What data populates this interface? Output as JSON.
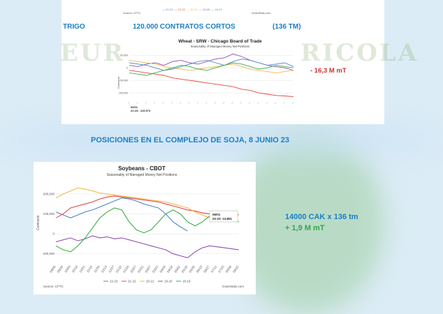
{
  "top": {
    "source_left": "Source: CFTC",
    "source_right": "GrainStats.com",
    "legend_top": [
      "22-23",
      "21-22",
      "20-21",
      "19-20",
      "18-19"
    ],
    "crop": "TRIGO",
    "contracts": "120.000 CONTRATOS CORTOS",
    "tonnes": "(136 TM)",
    "watermark_left": "EUR",
    "watermark_right": "RICOLA",
    "delta": "- 16,3 M mT"
  },
  "bottom": {
    "heading": "POSICIONES EN EL COMPLEJO DE SOJA, 8 JUNIO 23",
    "annotation_a": "14000 CAK x 136 tm",
    "annotation_b": "+ 1,9 M mT",
    "source_left": "Source: CFTC",
    "source_right": "GrainStats.com"
  },
  "colors": {
    "s2223": "#4f86c6",
    "s2122": "#e8453c",
    "s2021": "#f2b84b",
    "s1920": "#8e4fb0",
    "s1819": "#3fae49",
    "accent_blue": "#1b7fc4"
  },
  "chart_data": [
    {
      "type": "line",
      "title": "Wheat - SRW - Chicago Board of Trade",
      "subtitle": "Seasonality of Managed Money Net Positions",
      "ylabel": "Contracts",
      "ylim": [
        -130000,
        70000
      ],
      "yticks": [
        50000,
        0,
        -50000,
        -100000
      ],
      "ytick_labels": [
        "50,000",
        "0",
        "-50,000",
        "-100,000"
      ],
      "latest_label": "06/01",
      "latest_value_label": "22-23: -115,074",
      "series": [
        {
          "name": "22-23",
          "color": "#e8453c",
          "values": [
            -10000,
            -15000,
            -20000,
            -25000,
            -30000,
            -40000,
            -45000,
            -50000,
            -55000,
            -60000,
            -65000,
            -70000,
            -75000,
            -85000,
            -90000,
            -100000,
            -105000,
            -110000,
            -112000,
            -115000
          ]
        },
        {
          "name": "21-22",
          "color": "#8e4fb0",
          "values": [
            10000,
            5000,
            15000,
            20000,
            10000,
            25000,
            30000,
            20000,
            15000,
            25000,
            35000,
            40000,
            55000,
            45000,
            30000,
            20000,
            10000,
            5000,
            0,
            -10000
          ]
        },
        {
          "name": "20-21",
          "color": "#f2b84b",
          "values": [
            30000,
            25000,
            20000,
            15000,
            5000,
            0,
            -5000,
            -10000,
            -5000,
            0,
            5000,
            10000,
            15000,
            5000,
            -5000,
            -10000,
            -15000,
            -20000,
            -15000,
            -10000
          ]
        },
        {
          "name": "19-20",
          "color": "#4f86c6",
          "values": [
            20000,
            15000,
            10000,
            0,
            -10000,
            -5000,
            5000,
            15000,
            25000,
            30000,
            20000,
            10000,
            25000,
            35000,
            30000,
            20000,
            10000,
            15000,
            20000,
            5000
          ]
        },
        {
          "name": "18-19",
          "color": "#3fae49",
          "values": [
            -20000,
            -25000,
            -30000,
            -20000,
            -10000,
            0,
            10000,
            5000,
            -5000,
            -10000,
            0,
            10000,
            20000,
            15000,
            5000,
            -5000,
            0,
            10000,
            5000,
            0
          ]
        }
      ]
    },
    {
      "type": "line",
      "title": "Soybeans - CBOT",
      "subtitle": "Seasonality of Managed Money Net Positions",
      "ylabel": "Contracts",
      "ylim": [
        -150000,
        270000
      ],
      "yticks": [
        200000,
        100000,
        0,
        -100000
      ],
      "ytick_labels": [
        "200,000",
        "100,000",
        "0",
        "-100,000"
      ],
      "x": [
        "09/06",
        "09/20",
        "10/04",
        "10/18",
        "11/01",
        "11/15",
        "11/29",
        "12/13",
        "12/27",
        "01/10",
        "01/24",
        "02/07",
        "02/21",
        "03/07",
        "03/21",
        "04/04",
        "04/18",
        "05/02",
        "05/16",
        "05/30",
        "06/13",
        "06/27",
        "07/11",
        "07/25",
        "08/08",
        "08/22"
      ],
      "callout_label": "06/01",
      "callout_value": "22-23: 13,851",
      "series": [
        {
          "name": "22-23",
          "color": "#4f86c6",
          "values": [
            110000,
            95000,
            80000,
            95000,
            110000,
            120000,
            135000,
            150000,
            165000,
            180000,
            175000,
            165000,
            150000,
            140000,
            130000,
            100000,
            60000,
            35000,
            13851,
            null,
            null,
            null,
            null,
            null,
            null,
            null
          ]
        },
        {
          "name": "21-22",
          "color": "#e8453c",
          "values": [
            80000,
            100000,
            130000,
            140000,
            150000,
            160000,
            175000,
            185000,
            190000,
            185000,
            180000,
            175000,
            170000,
            165000,
            160000,
            150000,
            140000,
            130000,
            120000,
            115000,
            105000,
            100000,
            95000,
            100000,
            105000,
            95000
          ]
        },
        {
          "name": "20-21",
          "color": "#f2b84b",
          "values": [
            180000,
            200000,
            215000,
            230000,
            225000,
            215000,
            205000,
            200000,
            195000,
            190000,
            185000,
            180000,
            175000,
            170000,
            165000,
            160000,
            150000,
            140000,
            130000,
            110000,
            95000,
            80000,
            70000,
            80000,
            90000,
            95000
          ]
        },
        {
          "name": "19-20",
          "color": "#8e4fb0",
          "values": [
            -40000,
            -30000,
            -20000,
            -35000,
            -25000,
            -10000,
            -20000,
            -15000,
            -25000,
            -20000,
            -30000,
            -40000,
            -50000,
            -60000,
            -70000,
            -80000,
            -100000,
            -110000,
            -120000,
            -90000,
            -70000,
            -60000,
            -65000,
            -70000,
            -75000,
            -80000
          ]
        },
        {
          "name": "18-19",
          "color": "#3fae49",
          "values": [
            -60000,
            -80000,
            -90000,
            -60000,
            -20000,
            30000,
            80000,
            110000,
            130000,
            120000,
            60000,
            20000,
            5000,
            20000,
            60000,
            100000,
            120000,
            100000,
            60000,
            40000,
            60000,
            90000,
            110000,
            95000,
            70000,
            60000
          ]
        }
      ]
    }
  ]
}
